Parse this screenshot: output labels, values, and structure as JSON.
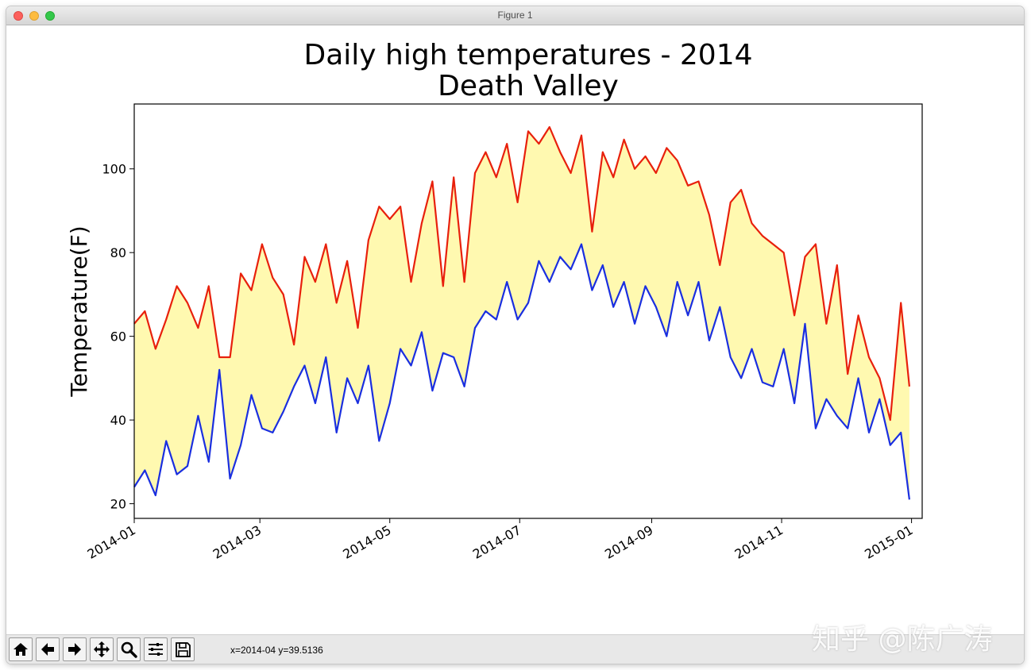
{
  "window": {
    "title": "Figure 1"
  },
  "toolbar": {
    "buttons": [
      {
        "name": "home-icon",
        "label": "Home"
      },
      {
        "name": "back-icon",
        "label": "Back"
      },
      {
        "name": "forward-icon",
        "label": "Forward"
      },
      {
        "name": "pan-icon",
        "label": "Pan"
      },
      {
        "name": "zoom-icon",
        "label": "Zoom"
      },
      {
        "name": "subplots-icon",
        "label": "Configure subplots"
      },
      {
        "name": "save-icon",
        "label": "Save"
      }
    ],
    "coords": "x=2014-04 y=39.5136"
  },
  "watermark": "知乎 @陈广涛",
  "colors": {
    "high": "#e8200c",
    "low": "#1a2fe0",
    "fill": "#fff9b0"
  },
  "chart_data": {
    "type": "line",
    "title": "Daily high temperatures - 2014\nDeath Valley",
    "title_lines": [
      "Daily high temperatures - 2014",
      "Death Valley"
    ],
    "xlabel": "",
    "ylabel": "Temperature(F)",
    "xlim": [
      "2014-01-01",
      "2015-01-06"
    ],
    "ylim": [
      16.5,
      115.5
    ],
    "x_ticks": [
      "2014-01",
      "2014-03",
      "2014-05",
      "2014-07",
      "2014-09",
      "2014-11",
      "2015-01"
    ],
    "x_tick_dates": [
      "2014-01-01",
      "2014-03-01",
      "2014-05-01",
      "2014-07-01",
      "2014-09-01",
      "2014-11-01",
      "2015-01-01"
    ],
    "y_ticks": [
      20,
      40,
      60,
      80,
      100
    ],
    "grid": false,
    "fill_between": true,
    "x": [
      "2014-01-01",
      "2014-01-06",
      "2014-01-11",
      "2014-01-16",
      "2014-01-21",
      "2014-01-26",
      "2014-01-31",
      "2014-02-05",
      "2014-02-10",
      "2014-02-15",
      "2014-02-20",
      "2014-02-25",
      "2014-03-02",
      "2014-03-07",
      "2014-03-12",
      "2014-03-17",
      "2014-03-22",
      "2014-03-27",
      "2014-04-01",
      "2014-04-06",
      "2014-04-11",
      "2014-04-16",
      "2014-04-21",
      "2014-04-26",
      "2014-05-01",
      "2014-05-06",
      "2014-05-11",
      "2014-05-16",
      "2014-05-21",
      "2014-05-26",
      "2014-05-31",
      "2014-06-05",
      "2014-06-10",
      "2014-06-15",
      "2014-06-20",
      "2014-06-25",
      "2014-06-30",
      "2014-07-05",
      "2014-07-10",
      "2014-07-15",
      "2014-07-20",
      "2014-07-25",
      "2014-07-30",
      "2014-08-04",
      "2014-08-09",
      "2014-08-14",
      "2014-08-19",
      "2014-08-24",
      "2014-08-29",
      "2014-09-03",
      "2014-09-08",
      "2014-09-13",
      "2014-09-18",
      "2014-09-23",
      "2014-09-28",
      "2014-10-03",
      "2014-10-08",
      "2014-10-13",
      "2014-10-18",
      "2014-10-23",
      "2014-10-28",
      "2014-11-02",
      "2014-11-07",
      "2014-11-12",
      "2014-11-17",
      "2014-11-22",
      "2014-11-27",
      "2014-12-02",
      "2014-12-07",
      "2014-12-12",
      "2014-12-17",
      "2014-12-22",
      "2014-12-27",
      "2014-12-31"
    ],
    "series": [
      {
        "name": "",
        "color": "#e8200c",
        "values": [
          63,
          66,
          57,
          64,
          72,
          68,
          62,
          72,
          55,
          55,
          75,
          71,
          82,
          74,
          70,
          58,
          79,
          73,
          82,
          68,
          78,
          62,
          83,
          91,
          88,
          91,
          73,
          87,
          97,
          72,
          98,
          73,
          99,
          104,
          98,
          106,
          92,
          109,
          106,
          110,
          104,
          99,
          108,
          85,
          104,
          98,
          107,
          100,
          103,
          99,
          105,
          102,
          96,
          97,
          89,
          77,
          92,
          95,
          87,
          84,
          82,
          80,
          65,
          79,
          82,
          63,
          77,
          51,
          65,
          55,
          50,
          40,
          68,
          48
        ]
      },
      {
        "name": "",
        "color": "#1a2fe0",
        "values": [
          24,
          28,
          22,
          35,
          27,
          29,
          41,
          30,
          52,
          26,
          34,
          46,
          38,
          37,
          42,
          48,
          53,
          44,
          55,
          37,
          50,
          44,
          53,
          35,
          44,
          57,
          53,
          61,
          47,
          56,
          55,
          48,
          62,
          66,
          64,
          73,
          64,
          68,
          78,
          73,
          79,
          76,
          82,
          71,
          77,
          67,
          73,
          63,
          72,
          67,
          60,
          73,
          65,
          73,
          59,
          67,
          55,
          50,
          57,
          49,
          48,
          57,
          44,
          63,
          38,
          45,
          41,
          38,
          50,
          37,
          45,
          34,
          37,
          21
        ]
      }
    ]
  }
}
